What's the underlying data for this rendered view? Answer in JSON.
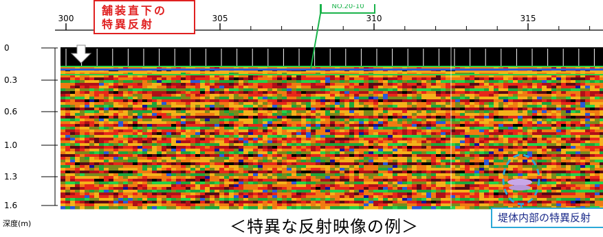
{
  "chart_data": {
    "type": "heatmap",
    "title": "",
    "xlabel": "",
    "ylabel": "深度(m)",
    "x_ticks": [
      "300",
      "305",
      "310",
      "315"
    ],
    "x_range": [
      300,
      317
    ],
    "y_ticks": [
      "0",
      "0.3",
      "0.6",
      "1.0",
      "1.3",
      "1.6"
    ],
    "y_range": [
      0,
      1.6
    ],
    "grid": true,
    "annotations": {
      "surface_reflection": "舗装直下の\n特異反射",
      "station_marker": "NO.20-10",
      "body_reflection": "堤体内部の特異反射"
    }
  },
  "caption": "＜特異な反射映像の例＞",
  "colors": {
    "background_dark": "#1a0000",
    "palette": [
      "#000000",
      "#5a0a14",
      "#b01018",
      "#e8281a",
      "#f07a12",
      "#f4b21a",
      "#7a8a1c",
      "#1ea63a",
      "#25d24a",
      "#2a5ad8",
      "#16129a",
      "#c8c8e8"
    ],
    "callout_red": "#e02020",
    "callout_blue": "#2aa8d8",
    "marker_green": "#19b34a"
  }
}
